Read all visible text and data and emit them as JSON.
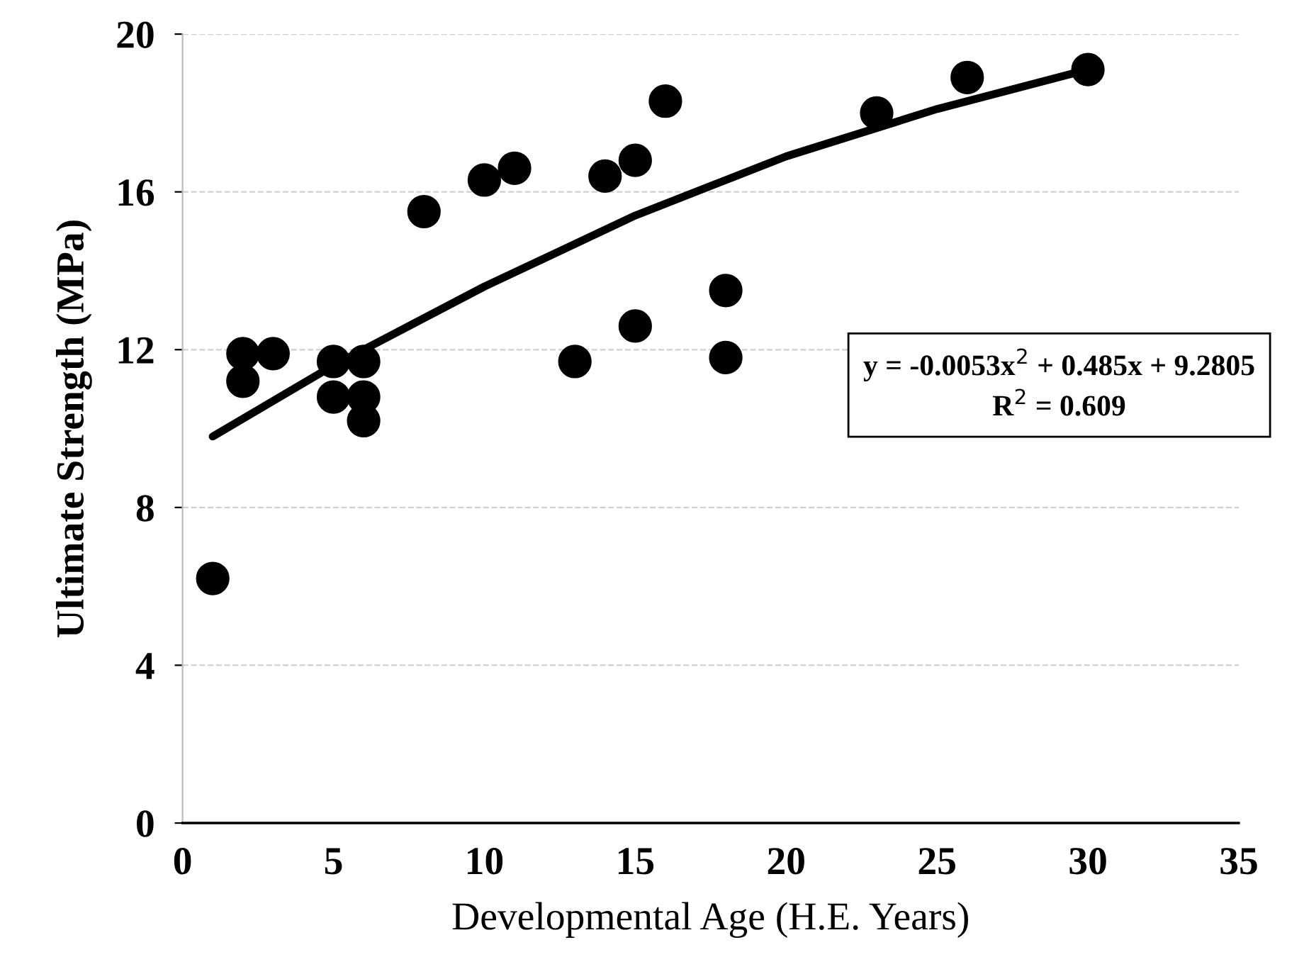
{
  "chart_data": {
    "type": "scatter",
    "xlabel": "Developmental Age (H.E. Years)",
    "ylabel": "Ultimate Strength (MPa)",
    "xlim": [
      0,
      35
    ],
    "xticks": [
      0,
      5,
      10,
      15,
      20,
      25,
      30,
      35
    ],
    "ylim": [
      0,
      20
    ],
    "yticks": [
      0,
      4,
      8,
      12,
      16,
      20
    ],
    "grid": "y",
    "marker": "circle",
    "series": [
      {
        "color": "#000000",
        "x": [
          1,
          2,
          2,
          3,
          5,
          5,
          6,
          6,
          6,
          8,
          10,
          11,
          13,
          14,
          15,
          15,
          16,
          18,
          18,
          23,
          26,
          30
        ],
        "values": [
          6.2,
          11.9,
          11.2,
          11.9,
          11.7,
          10.8,
          11.7,
          10.8,
          10.2,
          15.5,
          16.3,
          16.6,
          11.7,
          16.4,
          16.8,
          12.6,
          18.3,
          13.5,
          11.8,
          18.0,
          18.9,
          19.1
        ]
      },
      {
        "type": "line",
        "color": "#000000",
        "marker": "none",
        "x": [
          1,
          5,
          10,
          15,
          20,
          25,
          30
        ],
        "values": [
          9.8,
          11.6,
          13.6,
          15.4,
          16.9,
          18.1,
          19.1
        ]
      }
    ],
    "annotations": [
      "y = -0.0053x$^{2}$ + 0.485x + 9.2805\nR$^{2}$ = 0.609"
    ]
  }
}
